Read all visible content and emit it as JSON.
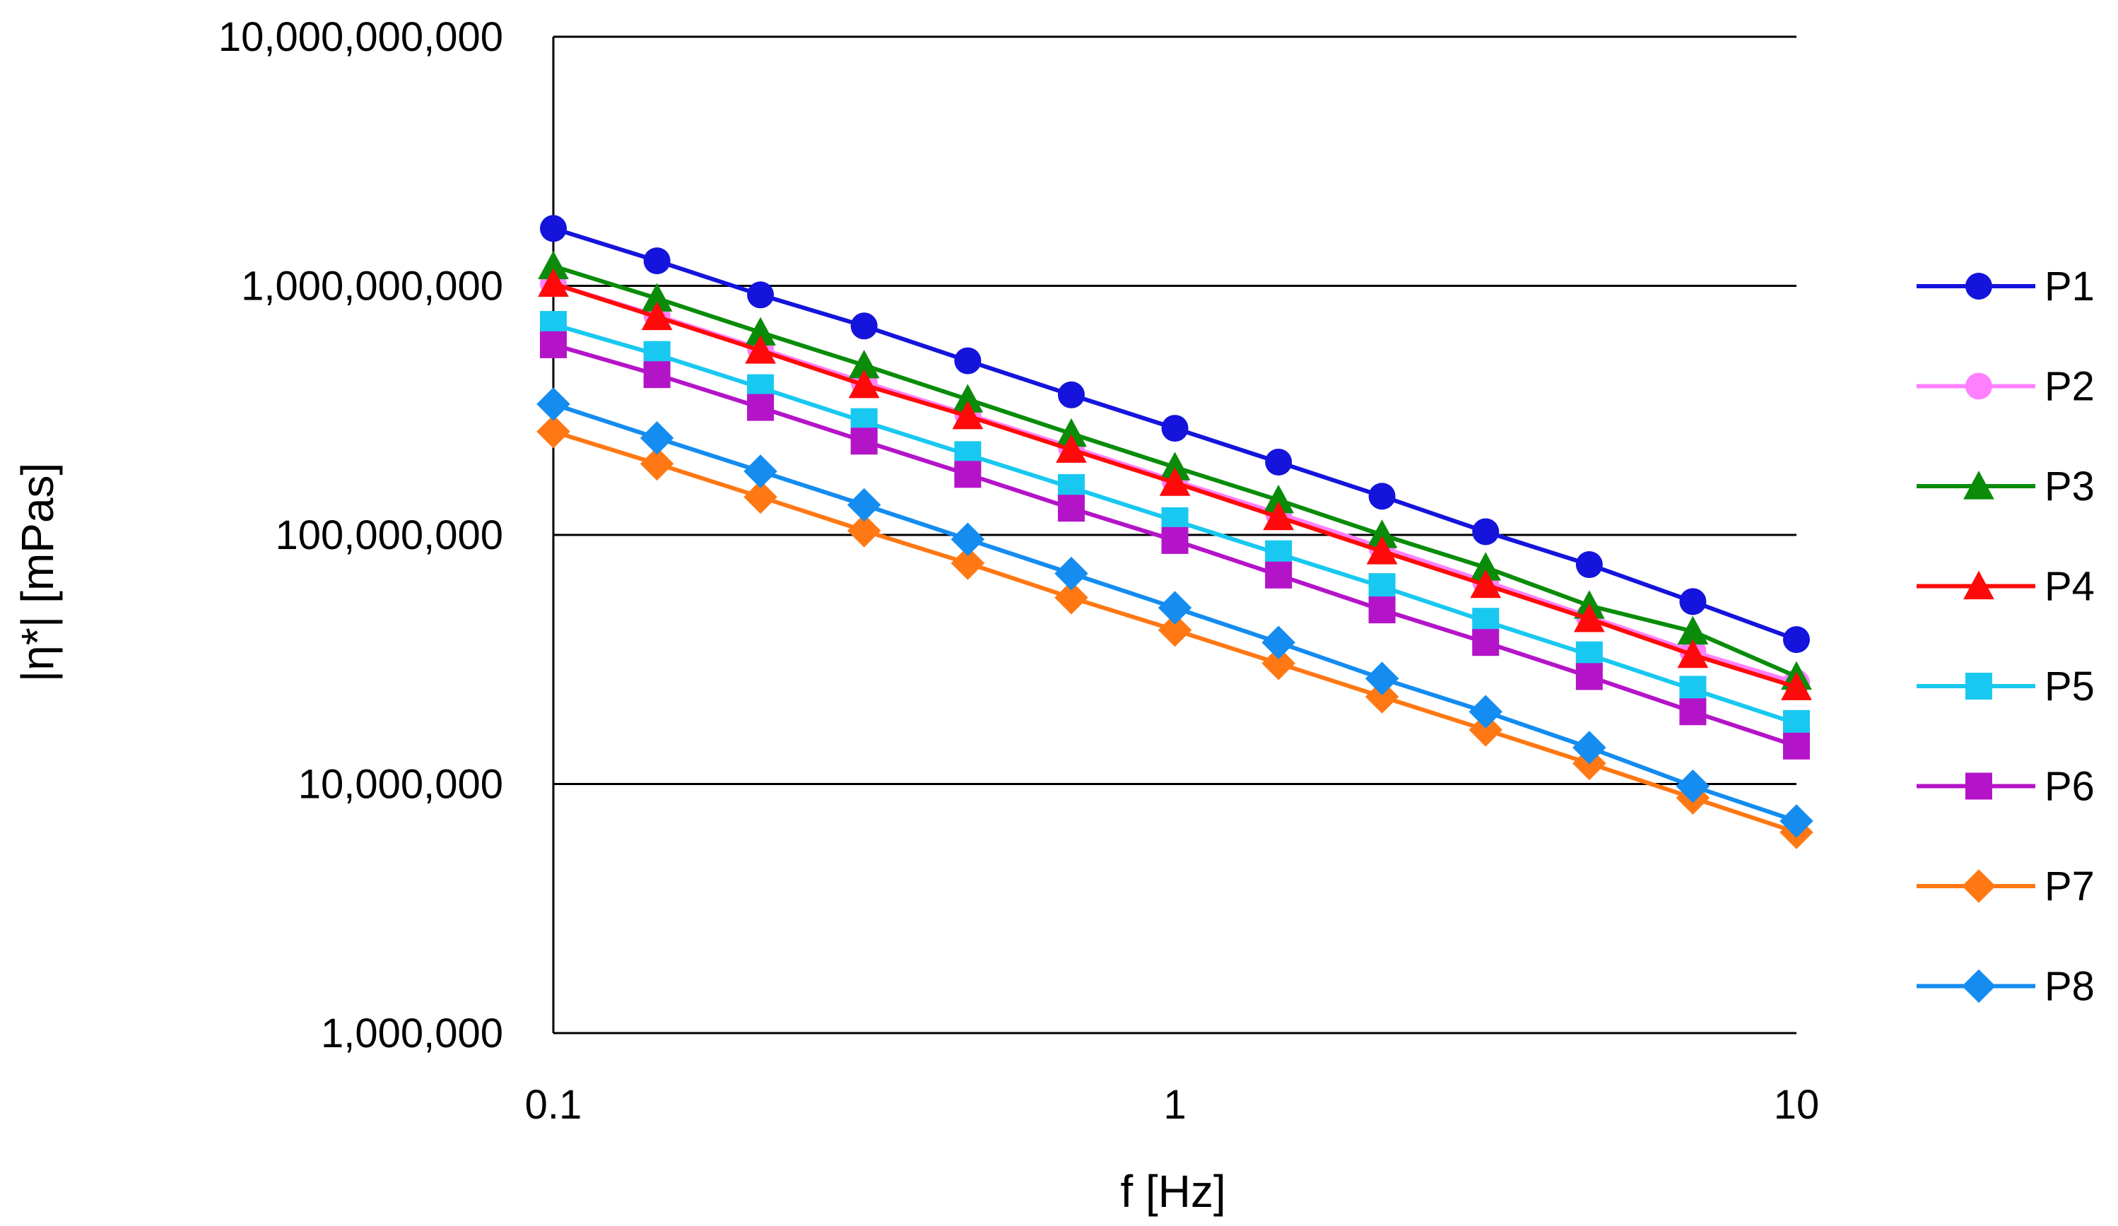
{
  "chart_data": {
    "type": "line",
    "title": "",
    "xlabel": "f [Hz]",
    "ylabel": "|η*| [mPas]",
    "xscale": "log",
    "yscale": "log",
    "xlim": [
      0.1,
      10
    ],
    "ylim": [
      1000000,
      10000000000
    ],
    "grid": "horizontal",
    "legend_position": "right",
    "x_ticks": [
      {
        "value": 0.1,
        "label": "0.1"
      },
      {
        "value": 1,
        "label": "1"
      },
      {
        "value": 10,
        "label": "10"
      }
    ],
    "y_ticks": [
      {
        "value": 1000000,
        "label": "1,000,000"
      },
      {
        "value": 10000000,
        "label": "10,000,000"
      },
      {
        "value": 100000000,
        "label": "100,000,000"
      },
      {
        "value": 1000000000,
        "label": "1,000,000,000"
      },
      {
        "value": 10000000000,
        "label": "10,000,000,000"
      }
    ],
    "x": [
      0.1,
      0.1468,
      0.2154,
      0.3162,
      0.4642,
      0.6813,
      1.0,
      1.468,
      2.154,
      3.162,
      4.642,
      6.813,
      10.0
    ],
    "series": [
      {
        "name": "P1",
        "color": "#1414dc",
        "marker": "circle",
        "values": [
          1700000000,
          1260000000,
          920000000,
          690000000,
          500000000,
          365000000,
          268000000,
          196000000,
          143000000,
          103000000,
          76000000,
          54000000,
          38000000
        ]
      },
      {
        "name": "P2",
        "color": "#ff80ff",
        "marker": "circle",
        "values": [
          1020000000,
          760000000,
          560000000,
          410000000,
          305000000,
          225000000,
          165000000,
          122000000,
          89000000,
          65000000,
          47000000,
          34000000,
          25500000
        ]
      },
      {
        "name": "P3",
        "color": "#0a8c0a",
        "marker": "triangle",
        "values": [
          1200000000,
          890000000,
          650000000,
          480000000,
          350000000,
          255000000,
          187000000,
          138000000,
          100000000,
          74000000,
          52000000,
          41000000,
          27000000
        ]
      },
      {
        "name": "P4",
        "color": "#ff0a0a",
        "marker": "triangle",
        "values": [
          1020000000,
          750000000,
          550000000,
          400000000,
          300000000,
          220000000,
          162000000,
          118000000,
          86000000,
          63000000,
          46000000,
          33000000,
          24500000
        ]
      },
      {
        "name": "P5",
        "color": "#19c8f0",
        "marker": "square",
        "values": [
          700000000,
          530000000,
          390000000,
          285000000,
          210000000,
          155000000,
          114000000,
          84000000,
          62000000,
          45000000,
          33000000,
          24000000,
          17500000
        ]
      },
      {
        "name": "P6",
        "color": "#b414c8",
        "marker": "square",
        "values": [
          580000000,
          440000000,
          325000000,
          238000000,
          175000000,
          128000000,
          95000000,
          69000000,
          50000000,
          37000000,
          27000000,
          19500000,
          14200000
        ]
      },
      {
        "name": "P7",
        "color": "#ff7814",
        "marker": "diamond",
        "values": [
          260000000,
          193000000,
          142000000,
          104000000,
          77000000,
          56000000,
          41500000,
          30500000,
          22400000,
          16500000,
          12100000,
          8800000,
          6400000
        ]
      },
      {
        "name": "P8",
        "color": "#148cf0",
        "marker": "diamond",
        "values": [
          335000000,
          245000000,
          180000000,
          132000000,
          96000000,
          70000000,
          51000000,
          37000000,
          26500000,
          19500000,
          14000000,
          9800000,
          7100000
        ]
      }
    ]
  }
}
